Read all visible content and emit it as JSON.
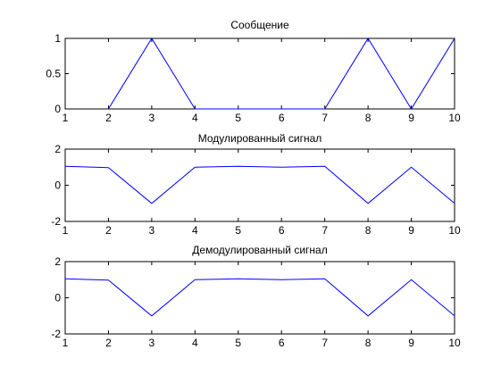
{
  "chart_data": [
    {
      "type": "line",
      "title": "Сообщение",
      "xlabel": "",
      "ylabel": "",
      "xlim": [
        1,
        10
      ],
      "ylim": [
        0,
        1
      ],
      "xticks": [
        "1",
        "2",
        "3",
        "4",
        "5",
        "6",
        "7",
        "8",
        "9",
        "10"
      ],
      "yticks": [
        "0",
        "0.5",
        "1"
      ],
      "grid": false,
      "line_color": "#0000ff",
      "series": [
        {
          "x": [
            2,
            3,
            4,
            5,
            6,
            7,
            8,
            9,
            10
          ],
          "y": [
            0,
            1,
            0,
            0,
            0,
            0,
            1,
            0,
            1
          ]
        }
      ]
    },
    {
      "type": "line",
      "title": "Модулированный сигнал",
      "xlabel": "",
      "ylabel": "",
      "xlim": [
        1,
        10
      ],
      "ylim": [
        -2,
        2
      ],
      "xticks": [
        "1",
        "2",
        "3",
        "4",
        "5",
        "6",
        "7",
        "8",
        "9",
        "10"
      ],
      "yticks": [
        "-2",
        "0",
        "2"
      ],
      "grid": false,
      "line_color": "#0000ff",
      "series": [
        {
          "x": [
            1,
            2,
            3,
            4,
            5,
            6,
            7,
            8,
            9,
            10
          ],
          "y": [
            1.05,
            0.98,
            -1.0,
            1.0,
            1.05,
            1.0,
            1.05,
            -1.0,
            1.0,
            -1.0
          ]
        }
      ]
    },
    {
      "type": "line",
      "title": "Демодулированный сигнал",
      "xlabel": "",
      "ylabel": "",
      "xlim": [
        1,
        10
      ],
      "ylim": [
        -2,
        2
      ],
      "xticks": [
        "1",
        "2",
        "3",
        "4",
        "5",
        "6",
        "7",
        "8",
        "9",
        "10"
      ],
      "yticks": [
        "-2",
        "0",
        "2"
      ],
      "grid": false,
      "line_color": "#0000ff",
      "series": [
        {
          "x": [
            1,
            2,
            3,
            4,
            5,
            6,
            7,
            8,
            9,
            10
          ],
          "y": [
            1.05,
            0.98,
            -1.0,
            1.0,
            1.05,
            1.0,
            1.05,
            -1.0,
            1.0,
            -1.0
          ]
        }
      ]
    }
  ]
}
